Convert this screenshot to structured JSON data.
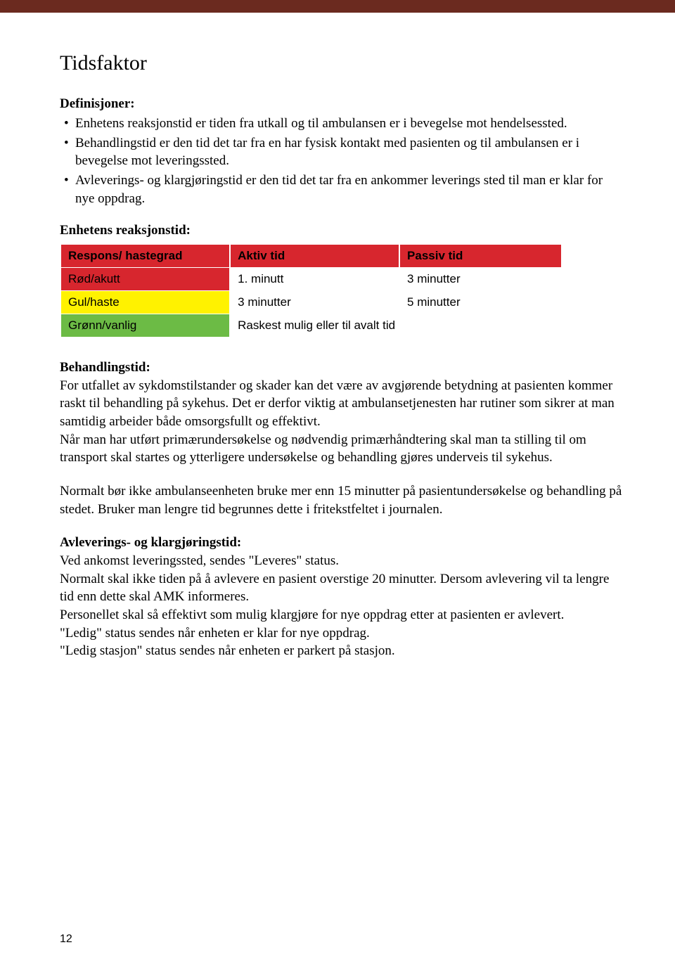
{
  "colors": {
    "top_bar": "#6b2a1f",
    "red": "#d7262e",
    "yellow": "#fff200",
    "green": "#6cbb45",
    "text": "#000000",
    "background": "#ffffff"
  },
  "title": "Tidsfaktor",
  "definitions": {
    "label": "Definisjoner:",
    "items": [
      "Enhetens reaksjonstid er tiden fra utkall og til ambulansen er i bevegelse mot hendelsessted.",
      "Behandlingstid er den tid det tar fra en har fysisk kontakt med pasienten og til ambulansen er i bevegelse mot leveringssted.",
      "Avleverings- og klargjøringstid er den tid det tar fra en ankommer leverings sted til man er klar for nye oppdrag."
    ]
  },
  "reaction": {
    "heading": "Enhetens reaksjonstid:",
    "table": {
      "font_family": "Arial",
      "header_fontsize": 17,
      "cell_fontsize": 17,
      "columns": [
        "Respons/ hastegrad",
        "Aktiv tid",
        "Passiv tid"
      ],
      "rows": [
        {
          "label": "Rød/akutt",
          "label_bg": "#d7262e",
          "aktiv": "1. minutt",
          "passiv": "3 minutter"
        },
        {
          "label": "Gul/haste",
          "label_bg": "#fff200",
          "aktiv": "3 minutter",
          "passiv": "5 minutter"
        },
        {
          "label": "Grønn/vanlig",
          "label_bg": "#6cbb45",
          "merged": "Raskest mulig eller til avalt tid"
        }
      ],
      "header_bg": "#d7262e",
      "cell_bg": "#ffffff"
    }
  },
  "behandlingstid": {
    "label": "Behandlingstid:",
    "para1": "For utfallet av sykdomstilstander og skader kan det være av avgjørende betydning at pasienten kommer raskt til behandling på sykehus. Det er derfor viktig at ambulansetjenesten har rutiner som sikrer at man samtidig arbeider både omsorgsfullt og effektivt.",
    "para2": "Når man har utført primærundersøkelse og nødvendig primærhåndtering skal man ta stilling til om transport skal startes og ytterligere undersøkelse og behandling gjøres underveis til sykehus.",
    "para3": "Normalt bør ikke ambulanseenheten bruke mer enn 15 minutter på pasientundersøkelse og behandling på stedet. Bruker man lengre tid begrunnes dette i fritekstfeltet i journalen."
  },
  "avlevering": {
    "label": "Avleverings- og klargjøringstid:",
    "lines": [
      "Ved ankomst leveringssted, sendes \"Leveres\" status.",
      "Normalt skal ikke tiden på å avlevere en pasient overstige 20 minutter. Dersom avlevering vil ta lengre tid enn dette skal AMK informeres.",
      "Personellet skal så effektivt som mulig klargjøre for nye oppdrag etter at pasienten er avlevert.",
      "\"Ledig\" status sendes når enheten er klar for nye oppdrag.",
      "\"Ledig stasjon\" status sendes når enheten er parkert på stasjon."
    ]
  },
  "page_number": "12"
}
